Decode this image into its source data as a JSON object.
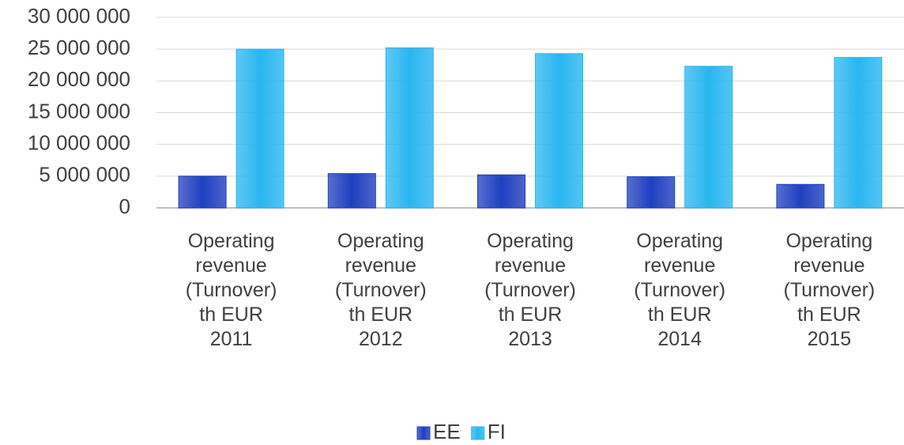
{
  "chart_data": {
    "type": "bar",
    "categories": [
      "Operating revenue (Turnover) th EUR 2011",
      "Operating revenue (Turnover) th EUR 2012",
      "Operating revenue (Turnover) th EUR 2013",
      "Operating revenue (Turnover) th EUR 2014",
      "Operating revenue (Turnover) th EUR 2015"
    ],
    "series": [
      {
        "name": "EE",
        "color": "#1f3fbf",
        "values": [
          5000000,
          5400000,
          5200000,
          4900000,
          3700000
        ]
      },
      {
        "name": "FI",
        "color": "#29b6f0",
        "values": [
          25000000,
          25200000,
          24300000,
          22300000,
          23700000
        ]
      }
    ],
    "ylim": [
      0,
      30000000
    ],
    "yticks": [
      {
        "value": 0,
        "label": "0"
      },
      {
        "value": 5000000,
        "label": "5 000 000"
      },
      {
        "value": 10000000,
        "label": "10 000 000"
      },
      {
        "value": 15000000,
        "label": "15 000 000"
      },
      {
        "value": 20000000,
        "label": "20 000 000"
      },
      {
        "value": 25000000,
        "label": "25 000 000"
      },
      {
        "value": 30000000,
        "label": "30 000 000"
      }
    ],
    "grid": true,
    "legend": "bottom"
  }
}
